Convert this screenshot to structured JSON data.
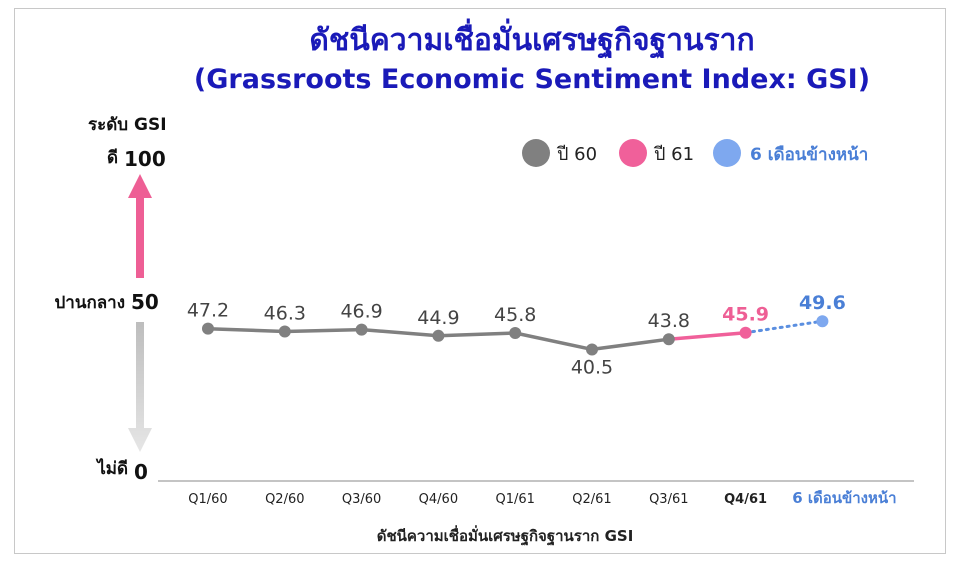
{
  "chart_data": {
    "type": "line",
    "title": "ดัชนีความเชื่อมั่นเศรษฐกิจฐานราก",
    "subtitle": "(Grassroots Economic Sentiment Index: GSI)",
    "ylabel": "ระดับ GSI",
    "xlabel": "ดัชนีความเชื่อมั่นเศรษฐกิจฐานราก GSI",
    "ylim": [
      0,
      100
    ],
    "y_markers": [
      {
        "word": "ดี",
        "value": "100"
      },
      {
        "word": "ปานกลาง",
        "value": "50"
      },
      {
        "word": "ไม่ดี",
        "value": "0"
      }
    ],
    "categories": [
      "Q1/60",
      "Q2/60",
      "Q3/60",
      "Q4/60",
      "Q1/61",
      "Q2/61",
      "Q3/61",
      "Q4/61",
      "6 เดือนข้างหน้า"
    ],
    "series": [
      {
        "name": "ปี 60",
        "color": "#808080",
        "points": [
          [
            0,
            47.2
          ],
          [
            1,
            46.3
          ],
          [
            2,
            46.9
          ],
          [
            3,
            44.9
          ],
          [
            4,
            45.8
          ],
          [
            5,
            40.5
          ],
          [
            6,
            43.8
          ]
        ]
      },
      {
        "name": "ปี 61",
        "color": "#f0609a",
        "points": [
          [
            6,
            43.8
          ],
          [
            7,
            45.9
          ]
        ]
      },
      {
        "name": "6 เดือนข้างหน้า",
        "color": "#5b8fe0",
        "points": [
          [
            7,
            45.9
          ],
          [
            8,
            49.6
          ]
        ]
      }
    ],
    "data_labels": [
      "47.2",
      "46.3",
      "46.9",
      "44.9",
      "45.8",
      "40.5",
      "43.8",
      "45.9",
      "49.6"
    ],
    "legend_position": "top-right",
    "grid": false
  }
}
